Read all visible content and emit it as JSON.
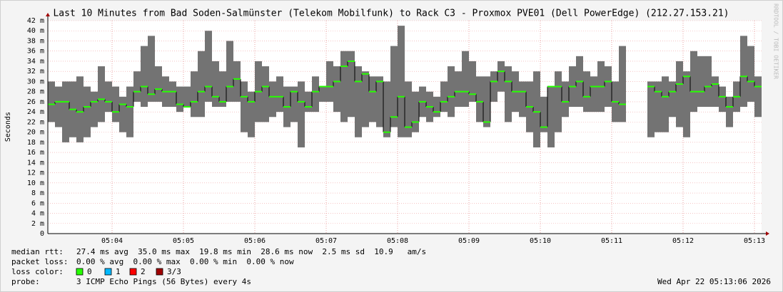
{
  "chart_data": {
    "type": "smokeping",
    "title": "Last 10 Minutes from Bad Soden-Salmünster (Telekom Mobilfunk) to Rack C3 - Proxmox PVE01 (Dell PowerEdge) (212.27.153.21)",
    "ylabel": "Seconds",
    "x": [
      3.15,
      3.25,
      3.35,
      3.45,
      3.55,
      3.65,
      3.75,
      3.85,
      3.95,
      4.05,
      4.15,
      4.25,
      4.35,
      4.45,
      4.55,
      4.65,
      4.75,
      4.85,
      4.95,
      5.05,
      5.15,
      5.25,
      5.35,
      5.45,
      5.55,
      5.65,
      5.75,
      5.85,
      5.95,
      6.05,
      6.15,
      6.25,
      6.35,
      6.45,
      6.55,
      6.65,
      6.75,
      6.85,
      6.95,
      7.05,
      7.15,
      7.25,
      7.35,
      7.45,
      7.55,
      7.65,
      7.75,
      7.85,
      7.95,
      8.05,
      8.15,
      8.25,
      8.35,
      8.45,
      8.55,
      8.65,
      8.75,
      8.85,
      8.95,
      9.05,
      9.15,
      9.25,
      9.35,
      9.45,
      9.55,
      9.65,
      9.75,
      9.85,
      9.95,
      10.05,
      10.15,
      10.25,
      10.35,
      10.45,
      10.55,
      10.65,
      10.75,
      10.85,
      10.95,
      11.05,
      11.15,
      11.25,
      11.35,
      11.45,
      11.55,
      11.65,
      11.75,
      11.85,
      11.95,
      12.05,
      12.15,
      12.25,
      12.35,
      12.45,
      12.55,
      12.65,
      12.75,
      12.85,
      12.95,
      13.05
    ],
    "xlim": [
      3.1,
      13.1
    ],
    "xticks": [
      {
        "value": 4,
        "label": "05:04"
      },
      {
        "value": 5,
        "label": "05:05"
      },
      {
        "value": 6,
        "label": "05:06"
      },
      {
        "value": 7,
        "label": "05:07"
      },
      {
        "value": 8,
        "label": "05:08"
      },
      {
        "value": 9,
        "label": "05:09"
      },
      {
        "value": 10,
        "label": "05:10"
      },
      {
        "value": 11,
        "label": "05:11"
      },
      {
        "value": 12,
        "label": "05:12"
      },
      {
        "value": 13,
        "label": "05:13"
      }
    ],
    "ylim": [
      0,
      0.042
    ],
    "yticks": [
      0,
      {
        "value": 0.002,
        "label": "2 m"
      },
      {
        "value": 0.004,
        "label": "4 m"
      },
      {
        "value": 0.006,
        "label": "6 m"
      },
      {
        "value": 0.008,
        "label": "8 m"
      },
      {
        "value": 0.01,
        "label": "10 m"
      },
      {
        "value": 0.012,
        "label": "12 m"
      },
      {
        "value": 0.014,
        "label": "14 m"
      },
      {
        "value": 0.016,
        "label": "16 m"
      },
      {
        "value": 0.018,
        "label": "18 m"
      },
      {
        "value": 0.02,
        "label": "20 m"
      },
      {
        "value": 0.022,
        "label": "22 m"
      },
      {
        "value": 0.024,
        "label": "24 m"
      },
      {
        "value": 0.026,
        "label": "26 m"
      },
      {
        "value": 0.028,
        "label": "28 m"
      },
      {
        "value": 0.03,
        "label": "30 m"
      },
      {
        "value": 0.032,
        "label": "32 m"
      },
      {
        "value": 0.034,
        "label": "34 m"
      },
      {
        "value": 0.036,
        "label": "36 m"
      },
      {
        "value": 0.038,
        "label": "38 m"
      },
      {
        "value": 0.04,
        "label": "40 m"
      },
      {
        "value": 0.042,
        "label": "42 m"
      }
    ],
    "grid": true,
    "series": [
      {
        "name": "median rtt:",
        "color": "#26ff00",
        "summary": "27.4 ms avg  35.0 ms max  19.8 ms min  28.6 ms now  2.5 ms sd  10.9   am/s",
        "values": [
          0.0255,
          0.026,
          0.026,
          0.0245,
          0.024,
          0.025,
          0.026,
          0.0265,
          0.026,
          0.024,
          0.0255,
          0.025,
          0.028,
          0.029,
          0.0275,
          0.0285,
          0.028,
          0.028,
          0.0255,
          0.025,
          0.026,
          0.028,
          0.029,
          0.027,
          0.026,
          0.029,
          0.0305,
          0.027,
          0.026,
          0.028,
          0.029,
          0.027,
          0.027,
          0.025,
          0.028,
          0.026,
          0.025,
          0.028,
          0.029,
          0.029,
          0.03,
          0.033,
          0.034,
          0.03,
          0.0315,
          0.028,
          0.03,
          0.02,
          0.023,
          0.027,
          0.021,
          0.022,
          0.026,
          0.025,
          0.024,
          0.026,
          0.027,
          0.028,
          0.028,
          0.0275,
          0.026,
          0.022,
          0.03,
          0.032,
          0.03,
          0.028,
          0.028,
          0.025,
          0.024,
          0.021,
          0.029,
          0.029,
          0.026,
          0.029,
          0.03,
          0.027,
          0.029,
          0.029,
          0.03,
          0.026,
          0.0255,
          null,
          null,
          null,
          0.029,
          0.028,
          0.027,
          0.028,
          0.0295,
          0.031,
          0.028,
          0.028,
          0.029,
          0.0295,
          0.027,
          0.025,
          0.027,
          0.031,
          0.03,
          0.029
        ]
      }
    ],
    "range": {
      "color": "#737373",
      "low": [
        0.022,
        0.021,
        0.018,
        0.019,
        0.018,
        0.019,
        0.021,
        0.022,
        0.024,
        0.022,
        0.02,
        0.019,
        0.026,
        0.025,
        0.026,
        0.026,
        0.025,
        0.025,
        0.024,
        0.025,
        0.023,
        0.023,
        0.026,
        0.025,
        0.025,
        0.026,
        0.026,
        0.02,
        0.019,
        0.022,
        0.022,
        0.023,
        0.024,
        0.021,
        0.022,
        0.017,
        0.024,
        0.024,
        0.026,
        0.026,
        0.024,
        0.022,
        0.023,
        0.019,
        0.021,
        0.022,
        0.021,
        0.019,
        0.021,
        0.019,
        0.019,
        0.02,
        0.023,
        0.022,
        0.023,
        0.024,
        0.023,
        0.025,
        0.025,
        0.026,
        0.022,
        0.021,
        0.026,
        0.028,
        0.022,
        0.024,
        0.023,
        0.02,
        0.017,
        0.02,
        0.017,
        0.02,
        0.023,
        0.025,
        0.025,
        0.024,
        0.024,
        0.024,
        0.025,
        0.022,
        0.022,
        null,
        null,
        null,
        0.019,
        0.02,
        0.02,
        0.023,
        0.021,
        0.019,
        0.024,
        0.025,
        0.025,
        0.025,
        0.024,
        0.021,
        0.024,
        0.025,
        0.026,
        0.023
      ],
      "high": [
        0.03,
        0.029,
        0.03,
        0.03,
        0.031,
        0.029,
        0.028,
        0.033,
        0.03,
        0.029,
        0.027,
        0.029,
        0.032,
        0.037,
        0.039,
        0.033,
        0.031,
        0.03,
        0.029,
        0.029,
        0.032,
        0.036,
        0.04,
        0.034,
        0.032,
        0.038,
        0.034,
        0.03,
        0.028,
        0.034,
        0.033,
        0.03,
        0.031,
        0.029,
        0.029,
        0.03,
        0.028,
        0.031,
        0.029,
        0.034,
        0.033,
        0.036,
        0.036,
        0.033,
        0.032,
        0.031,
        0.031,
        0.03,
        0.037,
        0.041,
        0.03,
        0.028,
        0.029,
        0.028,
        0.027,
        0.03,
        0.033,
        0.032,
        0.036,
        0.034,
        0.031,
        0.031,
        0.032,
        0.034,
        0.033,
        0.032,
        0.03,
        0.03,
        0.032,
        0.027,
        0.029,
        0.032,
        0.03,
        0.033,
        0.035,
        0.032,
        0.031,
        0.034,
        0.033,
        0.03,
        0.037,
        null,
        null,
        null,
        0.03,
        0.03,
        0.031,
        0.03,
        0.034,
        0.032,
        0.036,
        0.035,
        0.035,
        0.031,
        0.029,
        0.027,
        0.03,
        0.039,
        0.037,
        0.031
      ]
    }
  },
  "footer": {
    "packet_loss": {
      "label": "packet loss:",
      "text": "0.00 % avg  0.00 % max  0.00 % min  0.00 % now"
    },
    "loss_color": {
      "label": "loss color:",
      "items": [
        {
          "label": "0",
          "color": "#26ff00"
        },
        {
          "label": "1",
          "color": "#00b8ff"
        },
        {
          "label": "2",
          "color": "#ff0000"
        },
        {
          "label": "3/3",
          "color": "#a00000"
        }
      ]
    },
    "probe": {
      "label": "probe:",
      "text": "3 ICMP Echo Pings (56 Bytes) every 4s"
    },
    "timestamp": "Wed Apr 22 05:13:06 2026",
    "credit": "RRDTOOL / TOBI OETIKER"
  }
}
